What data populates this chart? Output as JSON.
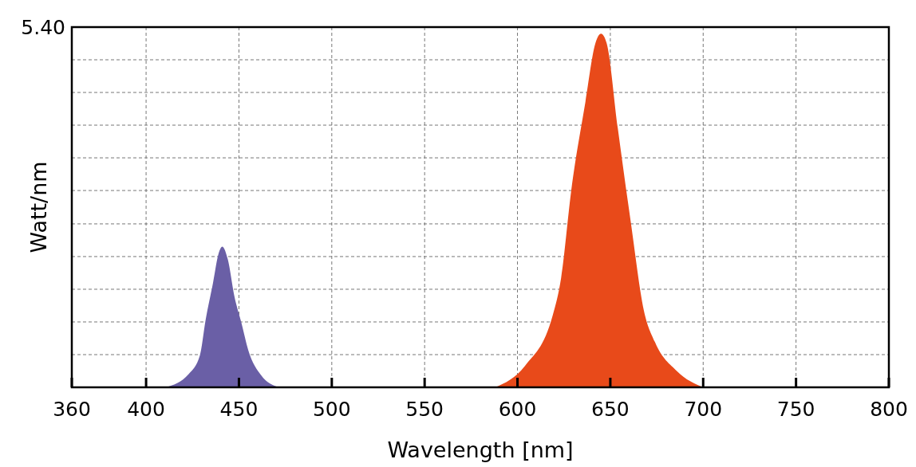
{
  "chart_data": {
    "type": "area",
    "xlabel": "Wavelength [nm]",
    "ylabel": "Watt/nm",
    "xlim": [
      360,
      800
    ],
    "xticks": [
      360,
      400,
      450,
      500,
      550,
      600,
      650,
      700,
      750,
      800
    ],
    "ylim": [
      0,
      5.4
    ],
    "yticks": [
      {
        "value": 0.49,
        "label": null
      },
      {
        "value": 0.98,
        "label": null
      },
      {
        "value": 1.47,
        "label": null
      },
      {
        "value": 1.96,
        "label": null
      },
      {
        "value": 2.45,
        "label": null
      },
      {
        "value": 2.95,
        "label": null
      },
      {
        "value": 3.44,
        "label": null
      },
      {
        "value": 3.93,
        "label": null
      },
      {
        "value": 4.42,
        "label": null
      },
      {
        "value": 4.91,
        "label": null
      },
      {
        "value": 5.4,
        "label": "5.40"
      }
    ],
    "grid": true,
    "series": [
      {
        "color": "#6a5fa6",
        "x": [
          410.5,
          423,
          429,
          432,
          436,
          439,
          441,
          444,
          447.5,
          451.4,
          455,
          462,
          471.5
        ],
        "values": [
          0,
          0.2,
          0.48,
          1.0,
          1.56,
          2.0,
          2.11,
          1.92,
          1.37,
          0.96,
          0.56,
          0.18,
          0
        ]
      },
      {
        "color": "#e84a1a",
        "x": [
          588,
          604,
          619,
          623.5,
          629,
          636.6,
          642,
          645,
          648,
          654,
          661,
          668,
          674,
          686,
          700
        ],
        "values": [
          0,
          0.32,
          1.08,
          1.64,
          2.96,
          4.28,
          5.16,
          5.3,
          5.16,
          3.89,
          2.48,
          1.16,
          0.68,
          0.24,
          0
        ]
      }
    ]
  }
}
